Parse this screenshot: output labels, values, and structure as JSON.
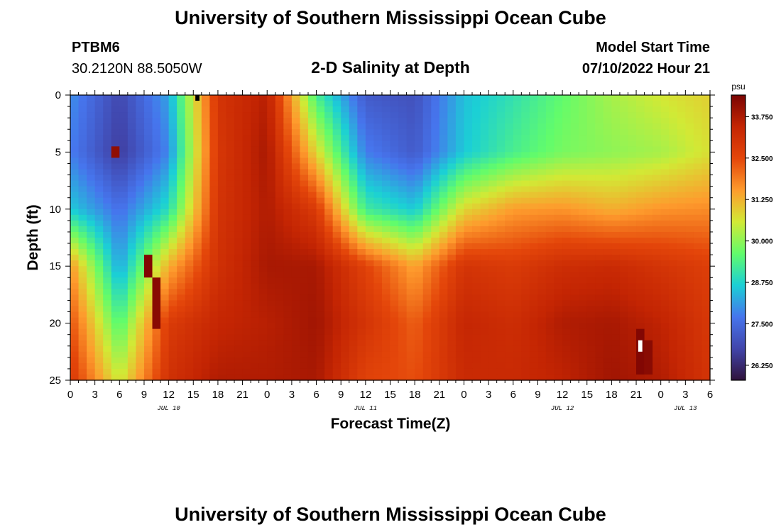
{
  "header": {
    "title": "University of Southern Mississippi Ocean Cube",
    "station_id": "PTBM6",
    "coordinates": "30.2120N  88.5050W",
    "start_label": "Model Start Time",
    "start_value": "07/10/2022 Hour 21"
  },
  "footer": {
    "title": "University of Southern Mississippi Ocean Cube"
  },
  "colors": {
    "scale": [
      "#30123b",
      "#4145ab",
      "#4675ed",
      "#1bd0d5",
      "#62fc6b",
      "#d2e935",
      "#fe9b2d",
      "#e4460a",
      "#c42503",
      "#7a0403"
    ]
  },
  "chart_data": {
    "type": "heatmap",
    "title": "2-D Salinity at Depth",
    "xlabel": "Forecast Time(Z)",
    "ylabel": "Depth (ft)",
    "x_range": [
      0,
      78
    ],
    "y_range": [
      0,
      25
    ],
    "x_ticks": [
      0,
      3,
      6,
      9,
      12,
      15,
      18,
      21,
      24,
      27,
      30,
      33,
      36,
      39,
      42,
      45,
      48,
      51,
      54,
      57,
      60,
      63,
      66,
      69,
      72,
      75,
      78
    ],
    "x_tick_labels": [
      "0",
      "3",
      "6",
      "9",
      "12",
      "15",
      "18",
      "21",
      "0",
      "3",
      "6",
      "9",
      "12",
      "15",
      "18",
      "21",
      "0",
      "3",
      "6",
      "9",
      "12",
      "15",
      "18",
      "21",
      "0",
      "3",
      "6"
    ],
    "y_ticks": [
      0,
      5,
      10,
      15,
      20,
      25
    ],
    "y_tick_labels": [
      "0",
      "5",
      "10",
      "15",
      "20",
      "25"
    ],
    "date_labels": [
      {
        "x": 12,
        "text": "JUL 10"
      },
      {
        "x": 36,
        "text": "JUL 11"
      },
      {
        "x": 60,
        "text": "JUL 12"
      },
      {
        "x": 75,
        "text": "JUL 13"
      }
    ],
    "colorbar": {
      "unit": "psu",
      "range": [
        25.8,
        34.4
      ],
      "ticks": [
        26.25,
        27.5,
        28.75,
        30.0,
        31.25,
        32.5,
        33.75
      ],
      "tick_labels": [
        "26.250",
        "27.500",
        "28.750",
        "30.000",
        "31.250",
        "32.500",
        "33.750"
      ]
    },
    "grid_hours": [
      0,
      6,
      12,
      18,
      24,
      30,
      36,
      42,
      48,
      54,
      60,
      66,
      72,
      78
    ],
    "grid_depths": [
      0,
      5,
      10,
      15,
      20,
      25
    ],
    "salinity": [
      [
        28.0,
        26.8,
        28.2,
        33.0,
        33.6,
        29.3,
        27.2,
        27.0,
        28.5,
        29.0,
        29.6,
        30.2,
        30.6,
        30.9
      ],
      [
        27.8,
        26.6,
        27.9,
        32.9,
        33.8,
        30.8,
        27.8,
        27.2,
        28.6,
        29.3,
        29.8,
        30.0,
        30.2,
        30.7
      ],
      [
        28.6,
        27.6,
        28.9,
        33.0,
        33.7,
        32.8,
        29.2,
        28.6,
        30.8,
        31.5,
        31.6,
        31.3,
        31.6,
        31.7
      ],
      [
        31.6,
        28.2,
        31.3,
        33.1,
        33.8,
        33.8,
        32.6,
        31.4,
        33.0,
        32.8,
        33.2,
        33.3,
        33.0,
        32.7
      ],
      [
        32.4,
        29.4,
        32.8,
        33.4,
        33.6,
        33.9,
        33.0,
        32.2,
        33.4,
        33.2,
        33.7,
        33.8,
        33.5,
        32.9
      ],
      [
        32.9,
        30.5,
        33.1,
        33.7,
        33.7,
        33.8,
        32.6,
        32.4,
        33.3,
        33.3,
        33.5,
        33.9,
        33.7,
        33.0
      ]
    ],
    "anomalies": [
      {
        "hour": 5,
        "depth_from": 4.5,
        "depth_to": 5.5,
        "value": 34.1
      },
      {
        "hour": 9,
        "depth_from": 14.0,
        "depth_to": 16.0,
        "value": 34.3
      },
      {
        "hour": 10,
        "depth_from": 16.0,
        "depth_to": 20.5,
        "value": 34.2
      },
      {
        "hour": 69,
        "depth_from": 20.5,
        "depth_to": 24.5,
        "value": 34.3
      },
      {
        "hour": 70,
        "depth_from": 21.5,
        "depth_to": 24.5,
        "value": 34.2
      }
    ],
    "missing_cells": [
      {
        "hour": 15,
        "depth_from": 0,
        "depth_to": 0.5,
        "value": "black"
      },
      {
        "hour": 69,
        "depth_from": 21.5,
        "depth_to": 22.5,
        "value": "white"
      }
    ]
  }
}
